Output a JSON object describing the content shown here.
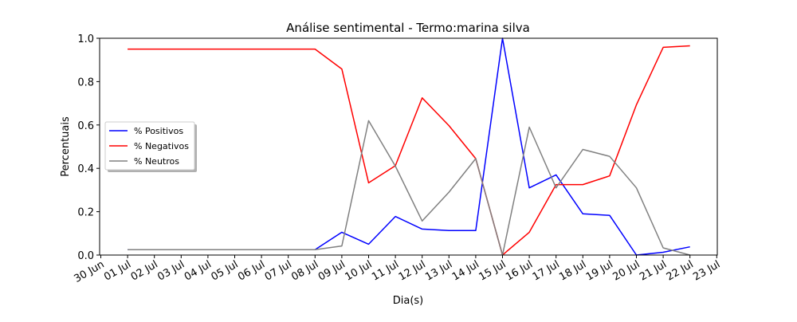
{
  "chart_data": {
    "type": "line",
    "title": "Análise sentimental - Termo:marina silva",
    "xlabel": "Dia(s)",
    "ylabel": "Percentuais",
    "ylim": [
      0,
      1.0
    ],
    "xlim": [
      "30 Jun",
      "23 Jul"
    ],
    "x_tick_labels": [
      "30 Jun",
      "01 Jul",
      "02 Jul",
      "03 Jul",
      "04 Jul",
      "05 Jul",
      "06 Jul",
      "07 Jul",
      "08 Jul",
      "09 Jul",
      "10 Jul",
      "11 Jul",
      "12 Jul",
      "13 Jul",
      "14 Jul",
      "15 Jul",
      "16 Jul",
      "17 Jul",
      "18 Jul",
      "19 Jul",
      "20 Jul",
      "21 Jul",
      "22 Jul",
      "23 Jul"
    ],
    "y_tick_labels": [
      "0.0",
      "0.2",
      "0.4",
      "0.6",
      "0.8",
      "1.0"
    ],
    "y_ticks": [
      0,
      0.2,
      0.4,
      0.6,
      0.8,
      1.0
    ],
    "x": [
      "01 Jul",
      "02 Jul",
      "03 Jul",
      "04 Jul",
      "05 Jul",
      "06 Jul",
      "07 Jul",
      "08 Jul",
      "09 Jul",
      "10 Jul",
      "11 Jul",
      "12 Jul",
      "13 Jul",
      "14 Jul",
      "15 Jul",
      "16 Jul",
      "17 Jul",
      "18 Jul",
      "19 Jul",
      "20 Jul",
      "21 Jul",
      "22 Jul"
    ],
    "grid": false,
    "legend_position": "center-left",
    "series": [
      {
        "name": "% Positivos",
        "color": "#0000ff",
        "values": [
          0.025,
          0.025,
          0.025,
          0.025,
          0.025,
          0.025,
          0.025,
          0.025,
          0.105,
          0.05,
          0.178,
          0.12,
          0.113,
          0.113,
          1.0,
          0.31,
          0.37,
          0.19,
          0.183,
          0.0,
          0.013,
          0.038
        ]
      },
      {
        "name": "% Negativos",
        "color": "#ff0000",
        "values": [
          0.95,
          0.95,
          0.95,
          0.95,
          0.95,
          0.95,
          0.95,
          0.95,
          0.858,
          0.333,
          0.412,
          0.725,
          0.597,
          0.445,
          0.0,
          0.105,
          0.325,
          0.325,
          0.365,
          0.693,
          0.958,
          0.965
        ]
      },
      {
        "name": "% Neutros",
        "color": "#808080",
        "values": [
          0.025,
          0.025,
          0.025,
          0.025,
          0.025,
          0.025,
          0.025,
          0.025,
          0.042,
          0.62,
          0.41,
          0.157,
          0.29,
          0.445,
          0.0,
          0.59,
          0.31,
          0.487,
          0.455,
          0.31,
          0.033,
          0.0
        ]
      }
    ]
  }
}
